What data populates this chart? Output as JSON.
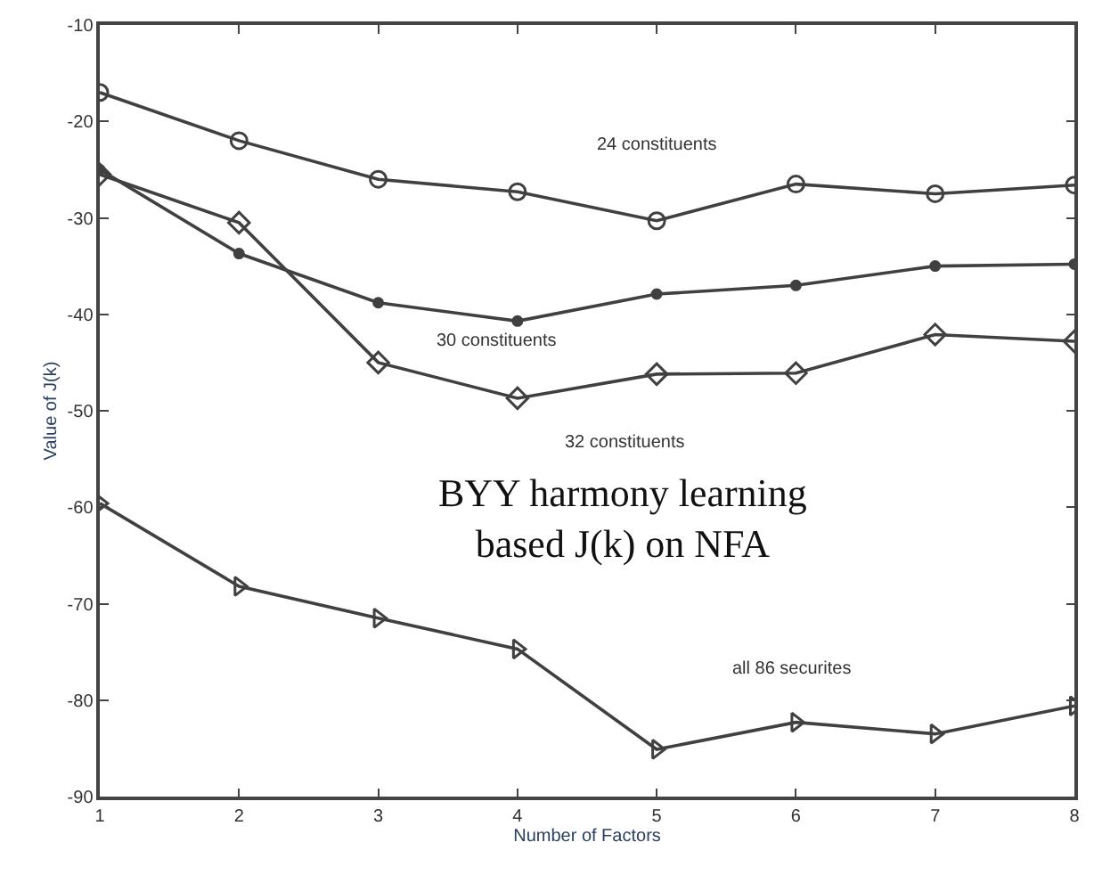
{
  "chart_data": {
    "type": "line",
    "xlabel": "Number of Factors",
    "ylabel": "Value of J(k)",
    "x": [
      1,
      2,
      3,
      4,
      5,
      6,
      7,
      8
    ],
    "series": [
      {
        "name": "24 constituents",
        "color": "#404040",
        "marker": "circle",
        "values": [
          -17,
          -22,
          -26,
          -27.3,
          -30.3,
          -26.5,
          -27.5,
          -26.6
        ]
      },
      {
        "name": "30 constituents",
        "color": "#404040",
        "marker": "dot",
        "values": [
          -25,
          -33.7,
          -38.8,
          -40.7,
          -37.9,
          -37,
          -35,
          -34.8
        ]
      },
      {
        "name": "32 constituents",
        "color": "#404040",
        "marker": "diamond",
        "values": [
          -25.5,
          -30.5,
          -45,
          -48.7,
          -46.2,
          -46.1,
          -42.1,
          -42.8
        ]
      },
      {
        "name": "all 86 securites",
        "color": "#404040",
        "marker": "triangle",
        "values": [
          -59.6,
          -68.2,
          -71.5,
          -74.7,
          -85.1,
          -82.3,
          -83.5,
          -80.6
        ]
      }
    ],
    "annotations": [
      "BYY harmony learning based J(k) on NFA"
    ],
    "xlim": [
      1,
      8
    ],
    "xticks": [
      1,
      2,
      3,
      4,
      5,
      6,
      7,
      8
    ],
    "ylim": [
      -90,
      -10
    ],
    "yticks": [
      -90,
      -80,
      -70,
      -60,
      -50,
      -40,
      -30,
      -20,
      -10
    ],
    "legend": false,
    "line_style": "solid"
  }
}
